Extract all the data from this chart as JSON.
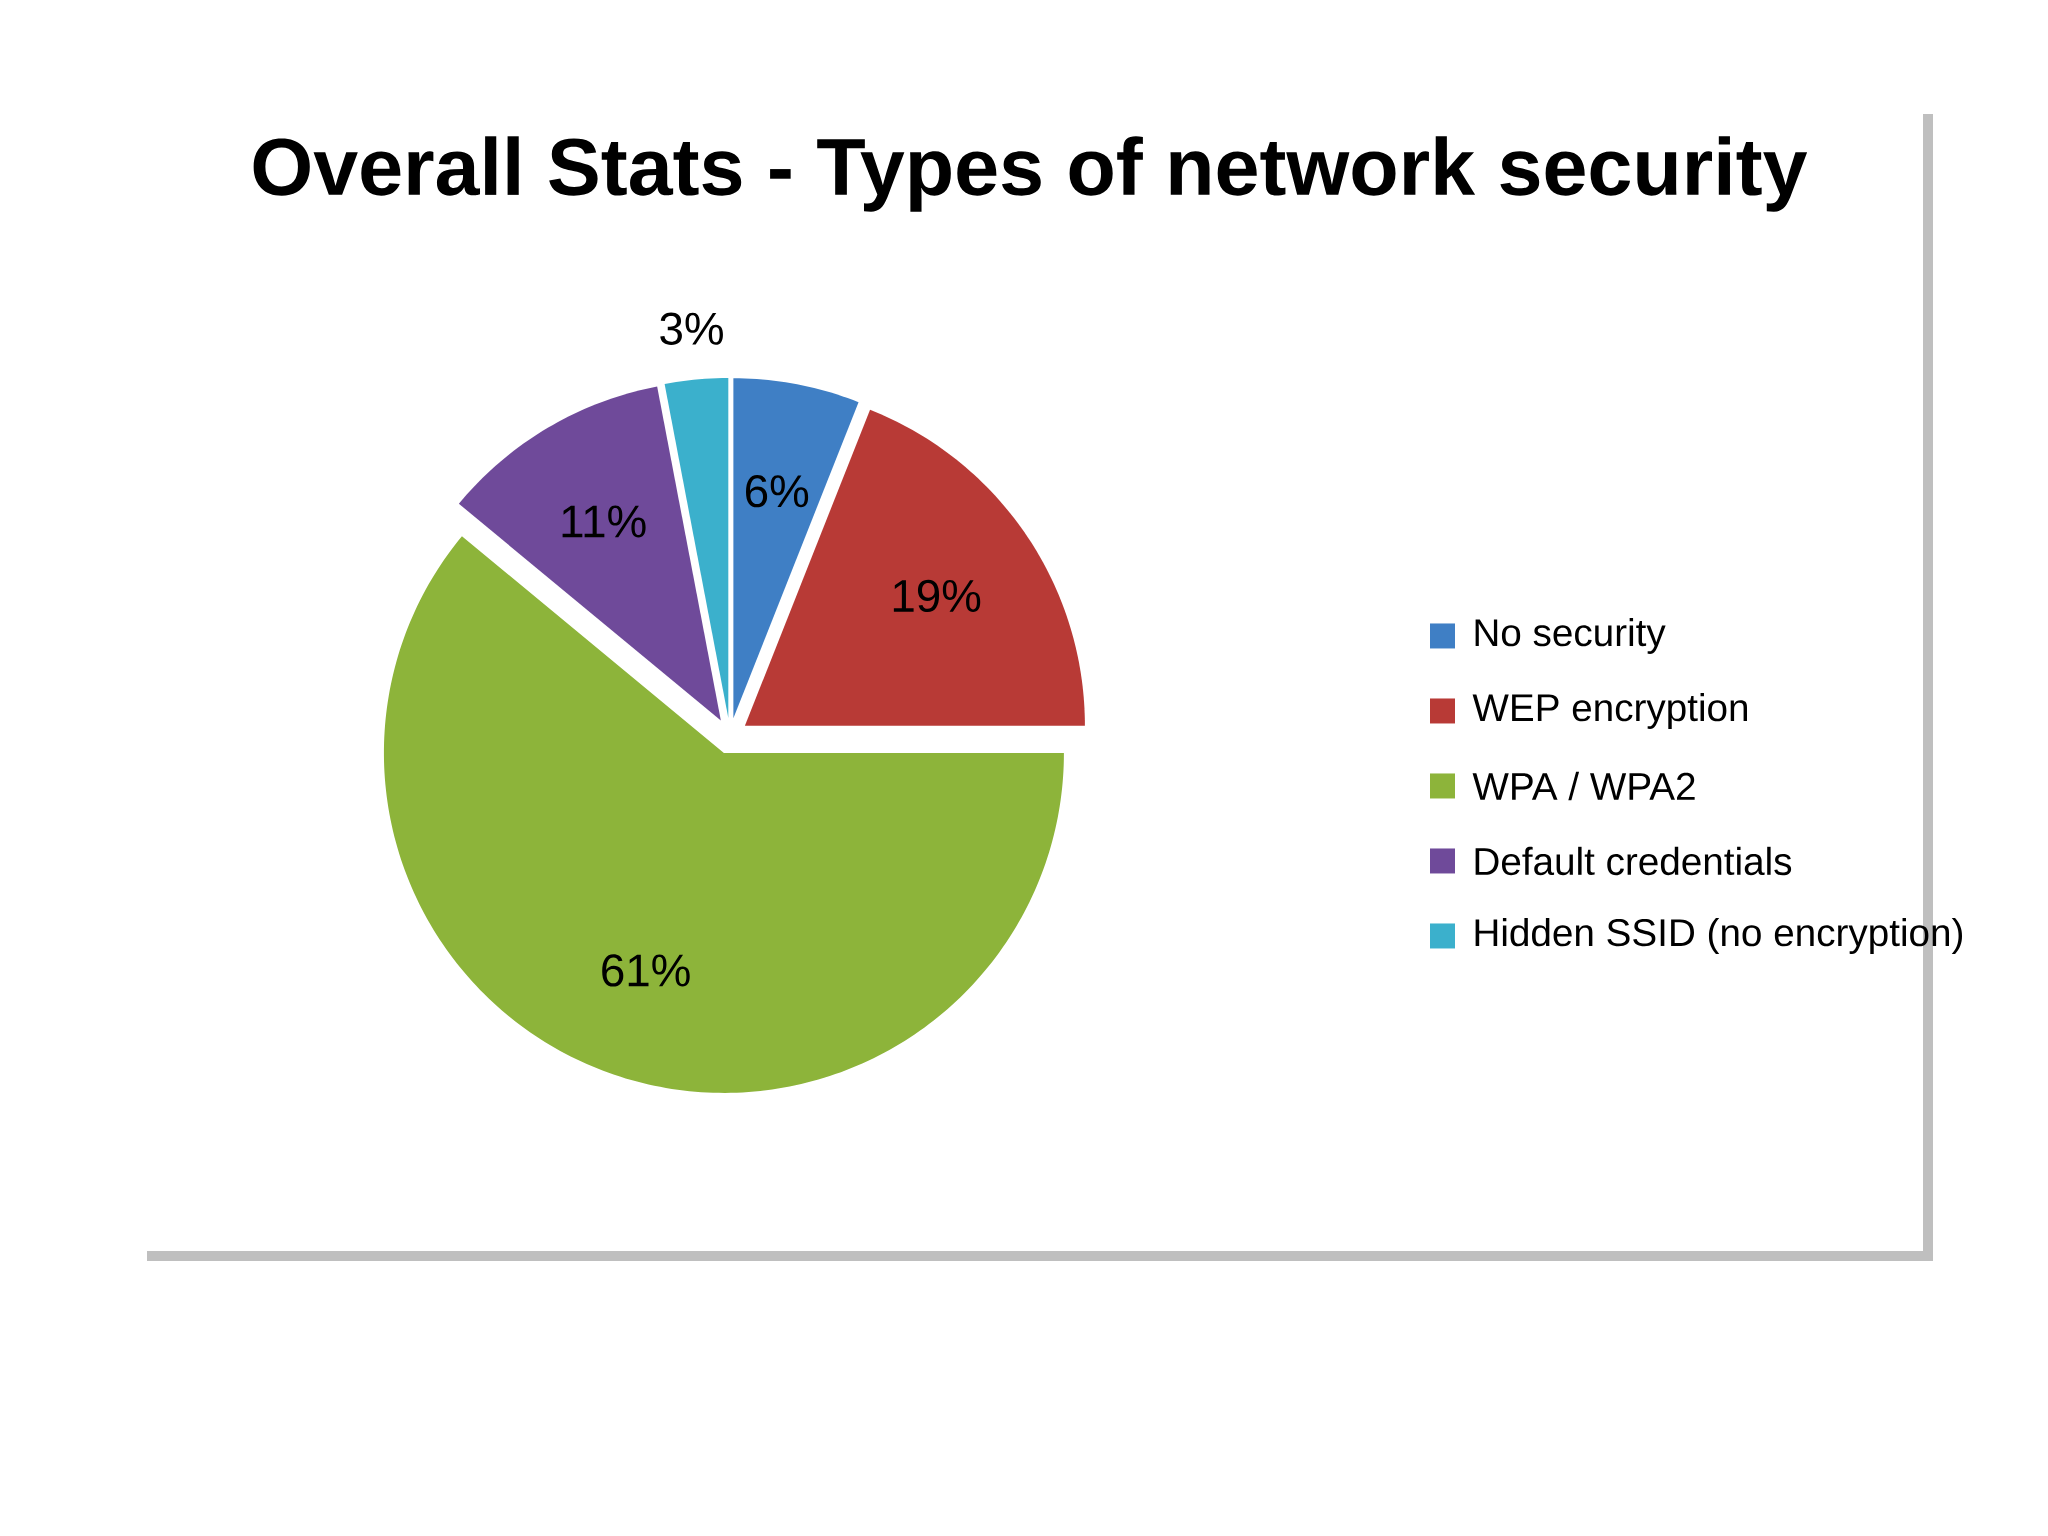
{
  "chart_data": {
    "type": "pie",
    "title": "Overall Stats - Types of network security",
    "categories": [
      "No security",
      "WEP encryption",
      "WPA / WPA2",
      "Default credentials",
      "Hidden SSID (no encryption)"
    ],
    "values": [
      6,
      19,
      61,
      11,
      3
    ],
    "value_labels": [
      "6%",
      "19%",
      "61%",
      "11%",
      "3%"
    ],
    "colors": [
      "#3f7fc5",
      "#b83a36",
      "#8db43a",
      "#6f4a9a",
      "#3bb0cc"
    ],
    "legend": "right"
  }
}
